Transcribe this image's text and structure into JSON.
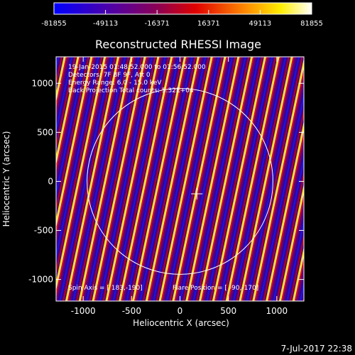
{
  "chart_data": {
    "type": "heatmap",
    "title": "Reconstructed RHESSI Image",
    "xlabel": "Heliocentric X (arcsec)",
    "ylabel": "Heliocentric Y (arcsec)",
    "xlim": [
      -1280,
      1280
    ],
    "ylim": [
      -1220,
      1270
    ],
    "xticks": [
      -1000,
      -500,
      0,
      500,
      1000
    ],
    "yticks": [
      -1000,
      -500,
      0,
      500,
      1000
    ],
    "colorbar": {
      "min": -81855,
      "max": 81855,
      "ticks": [
        -81855,
        -49113,
        -16371,
        16371,
        49113,
        81855
      ],
      "colormap": "blue-purple-red-yellow-white"
    },
    "solar_limb_radius_arcsec": 960,
    "flare_position": [
      -90,
      -170
    ],
    "annotations": {
      "line1": "19-Jan-2015 01:48:52.000 to 01:56:52.000",
      "line2": "Detectors: 7F 8F 9F, Att 0",
      "line3": "Energy Range: 6.0 - 15.0 keV",
      "line4": "Back Projection  Total counts: 5.32E+04",
      "spin_axis": "Spin Axis = [ 183,-190]",
      "flare": "Flare Position = [ -90,-170]"
    },
    "pattern": {
      "fringe_period_arcsec": 138,
      "stripe_angle_deg": 12
    },
    "footer_date": "7-Jul-2017 22:38"
  }
}
